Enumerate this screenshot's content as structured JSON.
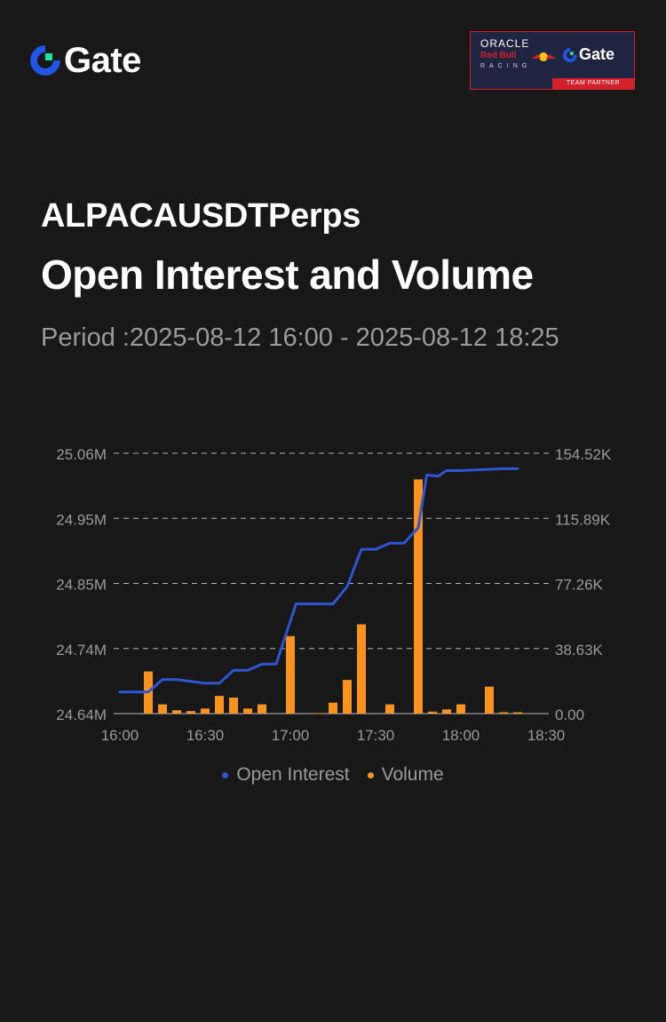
{
  "brand": {
    "name": "Gate"
  },
  "partner": {
    "oracle": "ORACLE",
    "redbull": "Red Bull",
    "racing": "RACING",
    "gate": "Gate",
    "strip": "TEAM PARTNER"
  },
  "header": {
    "symbol": "ALPACAUSDTPerps",
    "title": "Open Interest and Volume",
    "period": "Period :2025-08-12 16:00 - 2025-08-12 18:25"
  },
  "colors": {
    "background": "#181818",
    "open_interest": "#2f55d4",
    "volume": "#f7931e",
    "axis_text": "#9a9a9a",
    "grid": "#cfcfcf"
  },
  "chart_data": {
    "type": "bar+line",
    "x_ticks": [
      "16:00",
      "16:30",
      "17:00",
      "17:30",
      "18:00",
      "18:30"
    ],
    "left_axis": {
      "ticks": [
        "24.64M",
        "24.74M",
        "24.85M",
        "24.95M",
        "25.06M"
      ],
      "range": [
        24.64,
        25.06
      ],
      "unit": "M"
    },
    "right_axis": {
      "ticks": [
        "0.00",
        "38.63K",
        "77.26K",
        "115.89K",
        "154.52K"
      ],
      "range": [
        0,
        154.52
      ],
      "unit": "K"
    },
    "grid": "dashed horizontal",
    "legend": "bottom-center",
    "series": [
      {
        "name": "Open Interest",
        "type": "line",
        "axis": "left",
        "times": [
          "16:00",
          "16:05",
          "16:10",
          "16:15",
          "16:20",
          "16:25",
          "16:30",
          "16:35",
          "16:40",
          "16:45",
          "16:50",
          "16:55",
          "17:00",
          "17:05",
          "17:10",
          "17:15",
          "17:20",
          "17:25",
          "17:30",
          "17:35",
          "17:40",
          "17:45",
          "17:50",
          "17:55",
          "18:00",
          "18:05",
          "18:10",
          "18:15",
          "18:20",
          "18:25"
        ],
        "values": [
          24.675,
          24.675,
          24.68,
          24.695,
          24.695,
          24.692,
          24.689,
          24.689,
          24.71,
          24.71,
          24.72,
          24.72,
          24.817,
          24.817,
          24.817,
          24.817,
          24.845,
          24.905,
          24.905,
          24.915,
          24.915,
          24.94,
          25.025,
          25.023,
          25.032,
          25.032,
          25.033,
          25.034,
          25.035,
          25.035
        ],
        "points": [
          [
            "16:00",
            24.675
          ],
          [
            "16:10",
            24.675
          ],
          [
            "16:15",
            24.695
          ],
          [
            "16:20",
            24.695
          ],
          [
            "16:30",
            24.689
          ],
          [
            "16:35",
            24.689
          ],
          [
            "16:40",
            24.71
          ],
          [
            "16:45",
            24.71
          ],
          [
            "16:50",
            24.72
          ],
          [
            "16:55",
            24.72
          ],
          [
            "17:02",
            24.817
          ],
          [
            "17:10",
            24.817
          ],
          [
            "17:15",
            24.817
          ],
          [
            "17:20",
            24.845
          ],
          [
            "17:25",
            24.905
          ],
          [
            "17:30",
            24.905
          ],
          [
            "17:35",
            24.915
          ],
          [
            "17:40",
            24.915
          ],
          [
            "17:45",
            24.94
          ],
          [
            "17:48",
            25.025
          ],
          [
            "17:52",
            25.023
          ],
          [
            "17:55",
            25.032
          ],
          [
            "18:00",
            25.032
          ],
          [
            "18:05",
            25.033
          ],
          [
            "18:10",
            25.034
          ],
          [
            "18:15",
            25.035
          ],
          [
            "18:20",
            25.035
          ]
        ]
      },
      {
        "name": "Volume",
        "type": "bar",
        "axis": "right",
        "bars": [
          [
            "16:10",
            25.0
          ],
          [
            "16:15",
            5.5
          ],
          [
            "16:20",
            2.0
          ],
          [
            "16:25",
            1.5
          ],
          [
            "16:30",
            3.0
          ],
          [
            "16:35",
            10.5
          ],
          [
            "16:40",
            9.5
          ],
          [
            "16:45",
            3.0
          ],
          [
            "16:50",
            5.5
          ],
          [
            "17:00",
            46.0
          ],
          [
            "17:10",
            0.3
          ],
          [
            "17:15",
            6.5
          ],
          [
            "17:20",
            20.0
          ],
          [
            "17:25",
            53.0
          ],
          [
            "17:35",
            5.5
          ],
          [
            "17:45",
            139.0
          ],
          [
            "17:50",
            1.2
          ],
          [
            "17:55",
            2.5
          ],
          [
            "18:00",
            5.5
          ],
          [
            "18:10",
            16.0
          ],
          [
            "18:15",
            0.8
          ],
          [
            "18:20",
            0.8
          ]
        ]
      }
    ]
  }
}
